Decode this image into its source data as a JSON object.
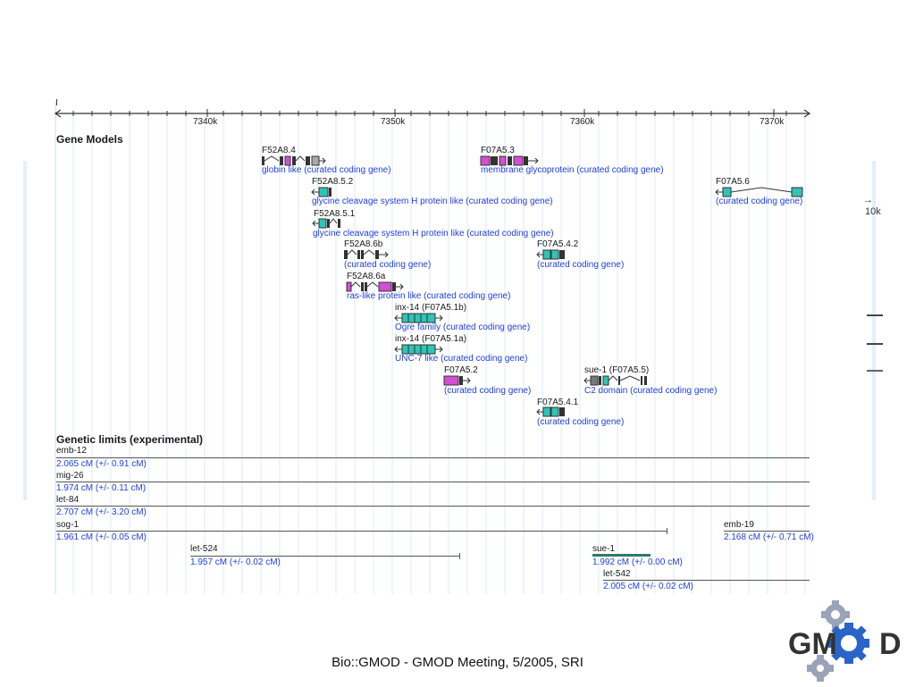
{
  "ruler": {
    "ticks": [
      "7340k",
      "7350k",
      "7360k",
      "7370k"
    ],
    "left_mark": "I"
  },
  "sections": {
    "gene_models": "Gene Models",
    "genetic_limits": "Genetic limits (experimental)"
  },
  "genes": [
    {
      "name": "F52A8.4",
      "desc": "globin like (curated coding gene)"
    },
    {
      "name": "F07A5.3",
      "desc": "membrane glycoprotein (curated coding gene)"
    },
    {
      "name": "F52A8.5.2",
      "desc": "glycine cleavage system H protein like (curated coding gene)"
    },
    {
      "name": "F07A5.6",
      "desc": "(curated coding gene)"
    },
    {
      "name": "F52A8.5.1",
      "desc": "glycine cleavage system H protein like (curated coding gene)"
    },
    {
      "name": "F52A8.6b",
      "desc": "(curated coding gene)"
    },
    {
      "name": "F07A5.4.2",
      "desc": "(curated coding gene)"
    },
    {
      "name": "F52A8.6a",
      "desc": "ras-like protein like (curated coding gene)"
    },
    {
      "name": "inx-14 (F07A5.1b)",
      "desc": "Ogre family (curated coding gene)"
    },
    {
      "name": "inx-14 (F07A5.1a)",
      "desc": "UNC-7 like (curated coding gene)"
    },
    {
      "name": "F07A5.2",
      "desc": "(curated coding gene)"
    },
    {
      "name": "sue-1 (F07A5.5)",
      "desc": "C2 domain (curated coding gene)"
    },
    {
      "name": "F07A5.4.1",
      "desc": "(curated coding gene)"
    }
  ],
  "limits": [
    {
      "name": "emb-12",
      "value": "2.065 cM (+/- 0.91 cM)"
    },
    {
      "name": "mig-26",
      "value": "1.974 cM (+/- 0.11 cM)"
    },
    {
      "name": "let-84",
      "value": "2.707 cM (+/- 3.20 cM)"
    },
    {
      "name": "sog-1",
      "value": "1.961 cM (+/- 0.05 cM)"
    },
    {
      "name": "emb-19",
      "value": "2.168 cM (+/- 0.71 cM)"
    },
    {
      "name": "let-524",
      "value": "1.957 cM (+/- 0.02 cM)"
    },
    {
      "name": "sue-1",
      "value": "1.992 cM (+/- 0.00 cM)"
    },
    {
      "name": "let-542",
      "value": "2.005 cM (+/- 0.02 cM)"
    }
  ],
  "background_fragments": {
    "tick_label": "10k",
    "arrow": "→"
  },
  "footer": "Bio::GMOD - GMOD Meeting, 5/2005, SRI",
  "logo": {
    "text_left": "GM",
    "text_right": "D",
    "colors": {
      "blue": "#2a64c8",
      "gray": "#9aa3b8",
      "dark": "#333"
    }
  },
  "colors": {
    "exon_cyan": "#2ec4b6",
    "exon_pink": "#d34fd3",
    "exon_dark": "#3c3c3c",
    "link_blue": "#1f3fdd"
  }
}
